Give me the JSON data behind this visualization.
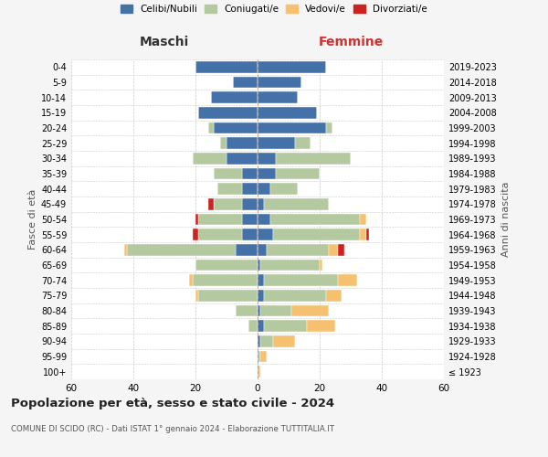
{
  "age_groups": [
    "100+",
    "95-99",
    "90-94",
    "85-89",
    "80-84",
    "75-79",
    "70-74",
    "65-69",
    "60-64",
    "55-59",
    "50-54",
    "45-49",
    "40-44",
    "35-39",
    "30-34",
    "25-29",
    "20-24",
    "15-19",
    "10-14",
    "5-9",
    "0-4"
  ],
  "birth_years": [
    "≤ 1923",
    "1924-1928",
    "1929-1933",
    "1934-1938",
    "1939-1943",
    "1944-1948",
    "1949-1953",
    "1954-1958",
    "1959-1963",
    "1964-1968",
    "1969-1973",
    "1974-1978",
    "1979-1983",
    "1984-1988",
    "1989-1993",
    "1994-1998",
    "1999-2003",
    "2004-2008",
    "2009-2013",
    "2014-2018",
    "2019-2023"
  ],
  "colors": {
    "celibi": "#4472a8",
    "coniugati": "#b5c9a0",
    "vedovi": "#f5c070",
    "divorziati": "#cc2222"
  },
  "male": {
    "celibi": [
      0,
      0,
      0,
      0,
      0,
      0,
      0,
      0,
      7,
      5,
      5,
      5,
      5,
      5,
      10,
      10,
      14,
      19,
      15,
      8,
      20
    ],
    "coniugati": [
      0,
      0,
      0,
      3,
      7,
      19,
      21,
      20,
      35,
      14,
      14,
      9,
      8,
      9,
      11,
      2,
      2,
      0,
      0,
      0,
      0
    ],
    "vedovi": [
      0,
      0,
      0,
      0,
      0,
      1,
      1,
      0,
      1,
      0,
      0,
      0,
      0,
      0,
      0,
      0,
      0,
      0,
      0,
      0,
      0
    ],
    "divorziati": [
      0,
      0,
      0,
      0,
      0,
      0,
      0,
      0,
      0,
      2,
      1,
      2,
      0,
      0,
      0,
      0,
      0,
      0,
      0,
      0,
      0
    ]
  },
  "female": {
    "celibi": [
      0,
      0,
      1,
      2,
      1,
      2,
      2,
      1,
      3,
      5,
      4,
      2,
      4,
      6,
      6,
      12,
      22,
      19,
      13,
      14,
      22
    ],
    "coniugati": [
      0,
      1,
      4,
      14,
      10,
      20,
      24,
      19,
      20,
      28,
      29,
      21,
      9,
      14,
      24,
      5,
      2,
      0,
      0,
      0,
      0
    ],
    "vedovi": [
      1,
      2,
      7,
      9,
      12,
      5,
      6,
      1,
      3,
      2,
      2,
      0,
      0,
      0,
      0,
      0,
      0,
      0,
      0,
      0,
      0
    ],
    "divorziati": [
      0,
      0,
      0,
      0,
      0,
      0,
      0,
      0,
      2,
      1,
      0,
      0,
      0,
      0,
      0,
      0,
      0,
      0,
      0,
      0,
      0
    ]
  },
  "xlim": 60,
  "xticks": [
    -60,
    -40,
    -20,
    0,
    20,
    40,
    60
  ],
  "xtick_labels": [
    "60",
    "40",
    "20",
    "0",
    "20",
    "40",
    "60"
  ],
  "title": "Popolazione per età, sesso e stato civile - 2024",
  "subtitle": "COMUNE DI SCIDO (RC) - Dati ISTAT 1° gennaio 2024 - Elaborazione TUTTITALIA.IT",
  "ylabel_left": "Fasce di età",
  "ylabel_right": "Anni di nascita",
  "label_maschi": "Maschi",
  "label_femmine": "Femmine",
  "legend_labels": [
    "Celibi/Nubili",
    "Coniugati/e",
    "Vedovi/e",
    "Divorziati/e"
  ],
  "bg_color": "#f5f5f5",
  "plot_bg_color": "#ffffff"
}
